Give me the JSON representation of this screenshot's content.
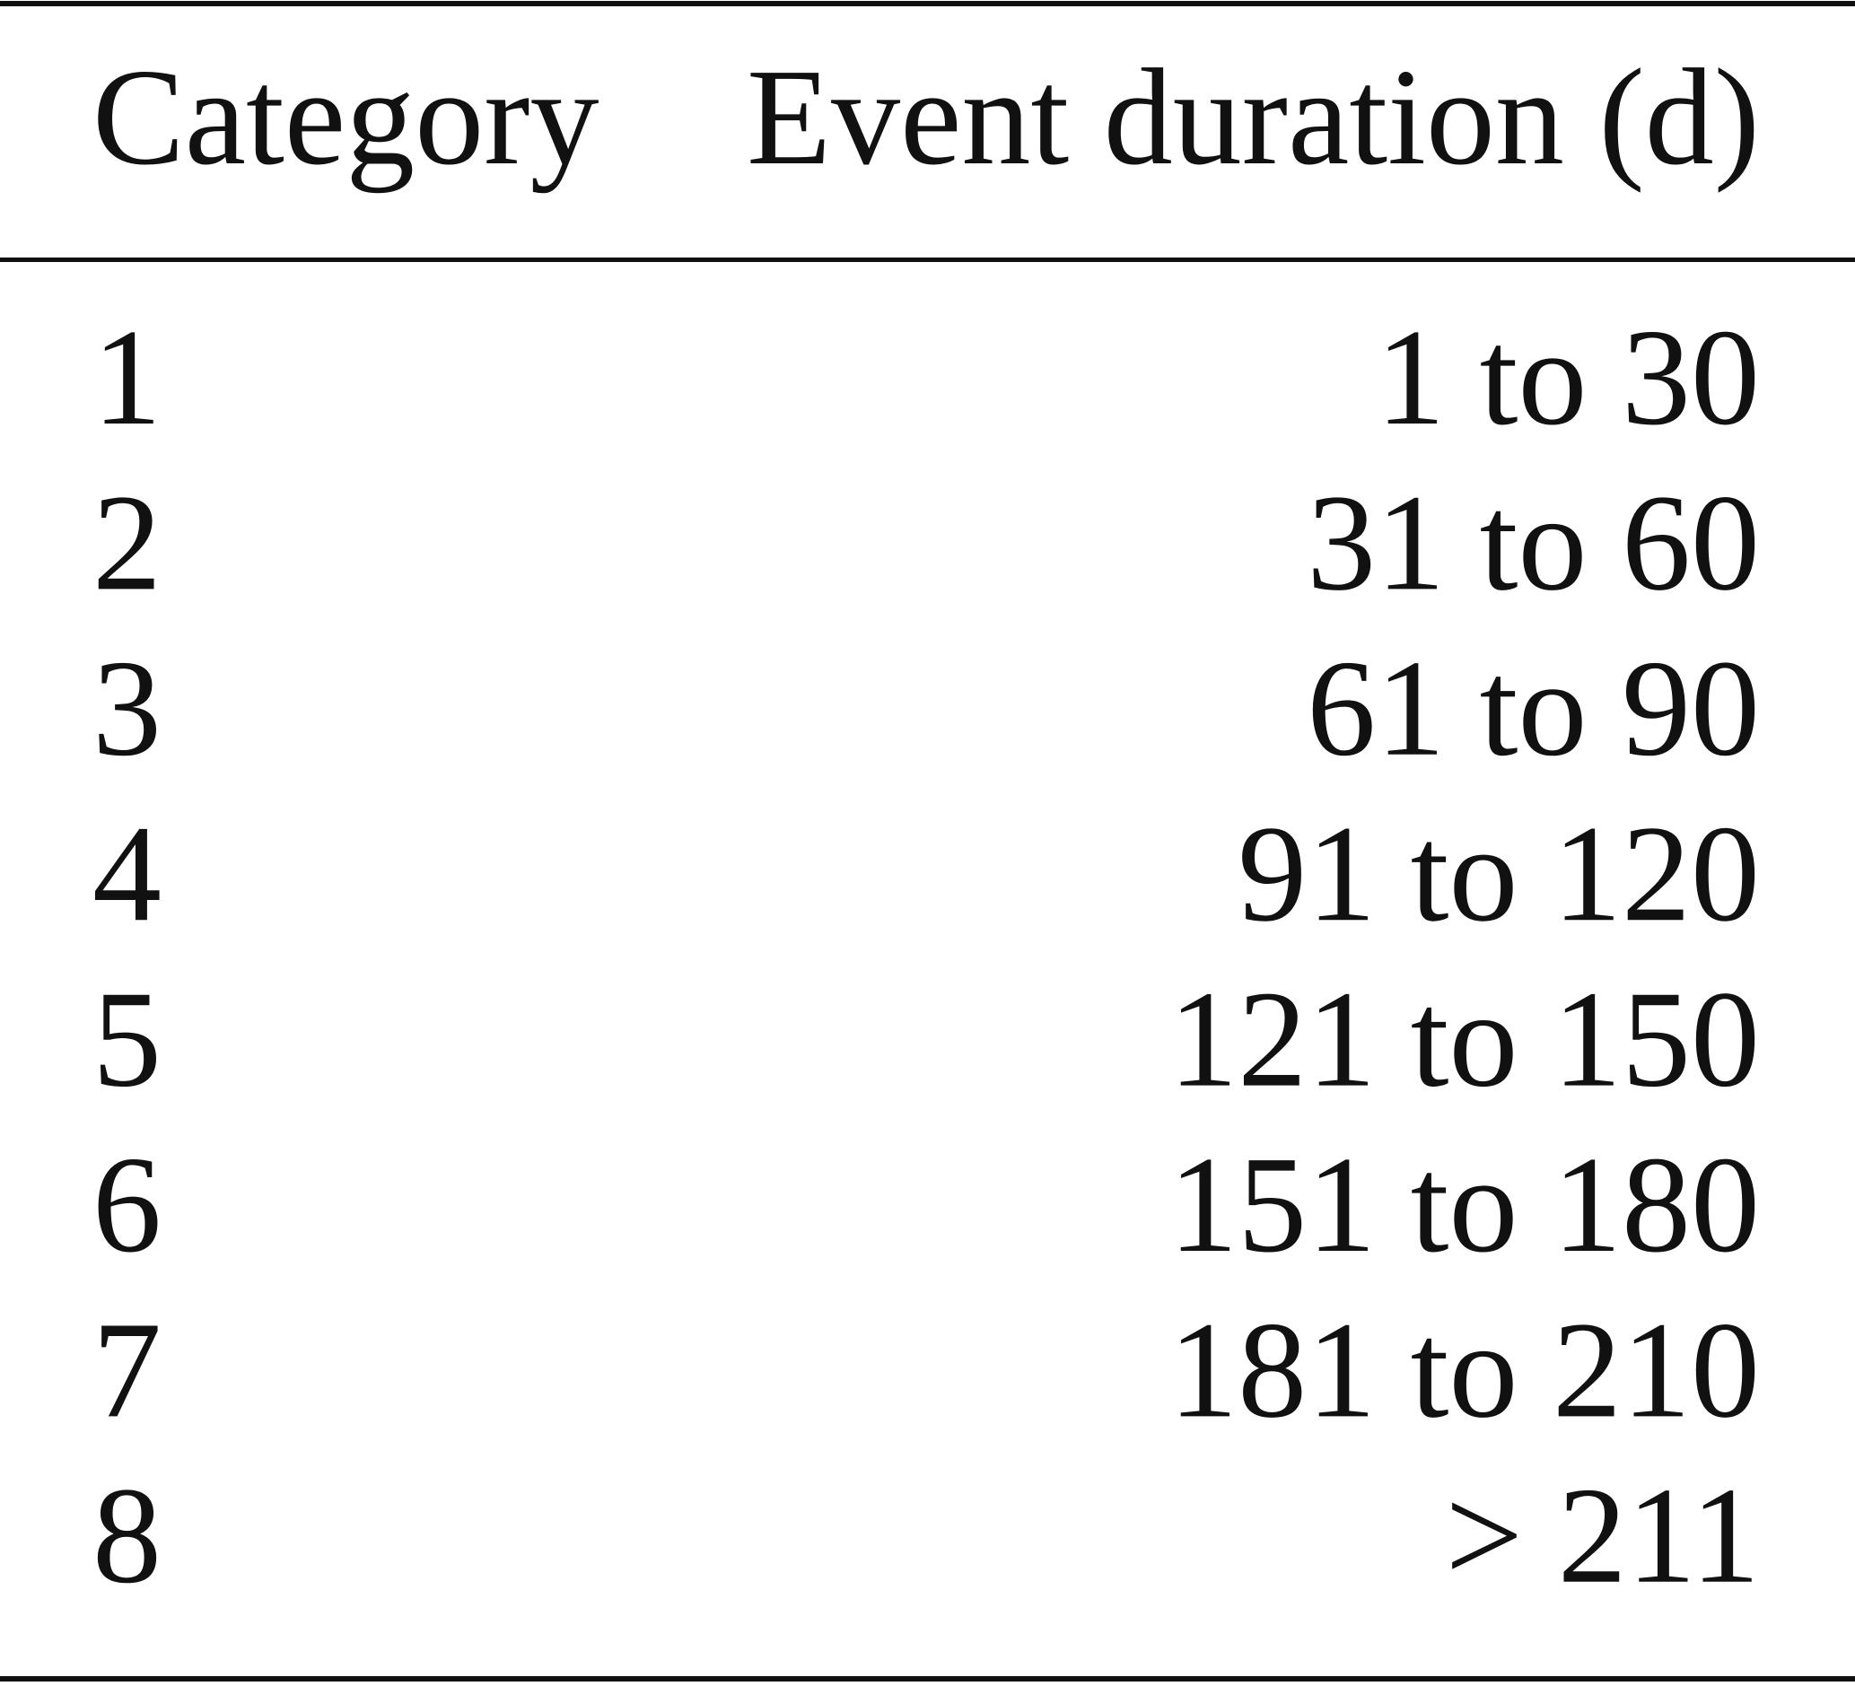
{
  "table": {
    "header": [
      "Category",
      "Event duration (d)"
    ],
    "rows": [
      [
        "1",
        "1 to 30"
      ],
      [
        "2",
        "31 to 60"
      ],
      [
        "3",
        "61 to 90"
      ],
      [
        "4",
        "91 to 120"
      ],
      [
        "5",
        "121 to 150"
      ],
      [
        "6",
        "151 to 180"
      ],
      [
        "7",
        "181 to 210"
      ],
      [
        "8",
        "> 211"
      ]
    ]
  }
}
